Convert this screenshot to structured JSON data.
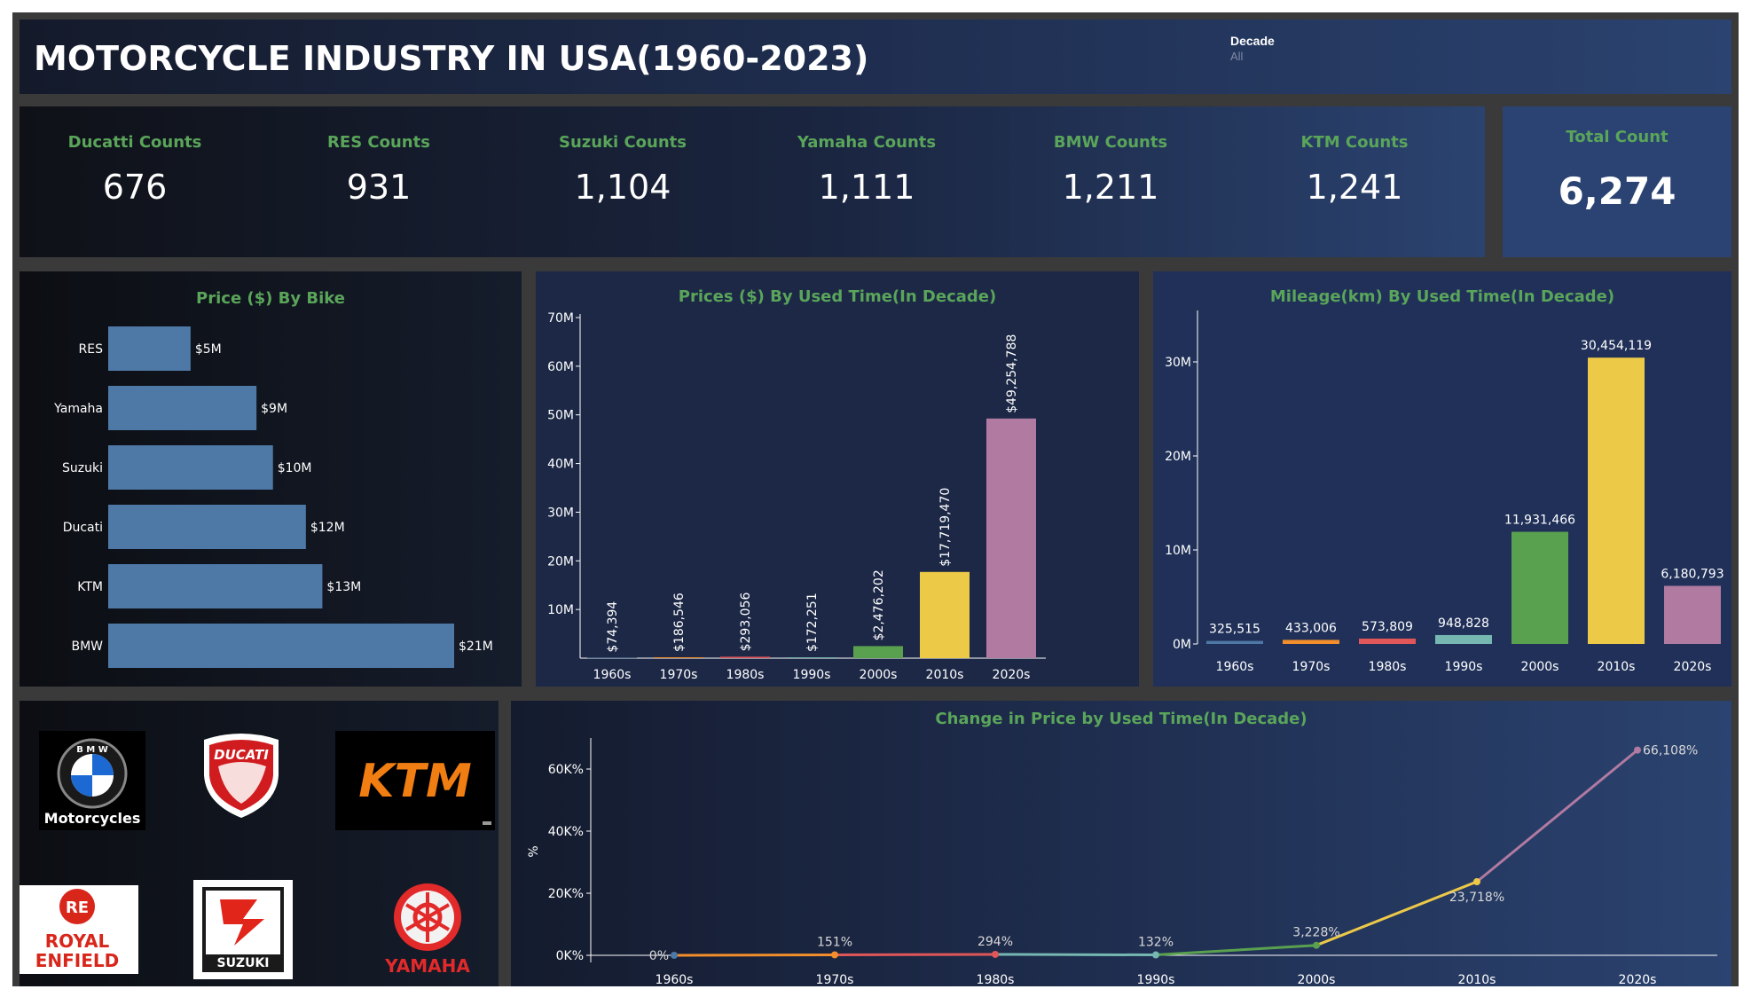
{
  "header": {
    "title": "MOTORCYCLE INDUSTRY IN USA(1960-2023)",
    "filter_label": "Decade",
    "filter_value": "All"
  },
  "kpis": [
    {
      "label": "Ducatti Counts",
      "value": "676"
    },
    {
      "label": "RES Counts",
      "value": "931"
    },
    {
      "label": "Suzuki Counts",
      "value": "1,104"
    },
    {
      "label": "Yamaha Counts",
      "value": "1,111"
    },
    {
      "label": "BMW Counts",
      "value": "1,211"
    },
    {
      "label": "KTM Counts",
      "value": "1,241"
    }
  ],
  "total": {
    "label": "Total Count",
    "value": "6,274"
  },
  "logos": {
    "bmw": {
      "text": "Motorcycles",
      "ring": "B M W"
    },
    "ducati": {
      "text": "DUCATI"
    },
    "ktm": {
      "text": "KTM"
    },
    "royal_enfield": {
      "line1": "ROYAL",
      "line2": "ENFIELD"
    },
    "suzuki": {
      "text": "SUZUKI"
    },
    "yamaha": {
      "text": "YAMAHA"
    }
  },
  "colors": {
    "bar_blue": "#4e79a7",
    "label_green": "#5aa55a",
    "decades": [
      "#4e79a7",
      "#f28e2b",
      "#e15759",
      "#76b7b2",
      "#59a14f",
      "#edc948",
      "#b07aa1"
    ]
  },
  "chart_data": [
    {
      "type": "bar",
      "orientation": "horizontal",
      "title": "Price ($) By Bike",
      "categories": [
        "RES",
        "Yamaha",
        "Suzuki",
        "Ducati",
        "KTM",
        "BMW"
      ],
      "values": [
        5,
        9,
        10,
        12,
        13,
        21
      ],
      "value_labels": [
        "$5M",
        "$9M",
        "$10M",
        "$12M",
        "$13M",
        "$21M"
      ],
      "unit": "M$"
    },
    {
      "type": "bar",
      "title": "Prices ($) By Used Time(In Decade)",
      "categories": [
        "1960s",
        "1970s",
        "1980s",
        "1990s",
        "2000s",
        "2010s",
        "2020s"
      ],
      "values": [
        74394,
        186546,
        293056,
        172251,
        2476202,
        17719470,
        49254788
      ],
      "value_labels": [
        "$74,394",
        "$186,546",
        "$293,056",
        "$172,251",
        "$2,476,202",
        "$17,719,470",
        "$49,254,788"
      ],
      "yticks": [
        "10M",
        "20M",
        "30M",
        "40M",
        "50M",
        "60M",
        "70M"
      ],
      "ylim": [
        0,
        70000000
      ]
    },
    {
      "type": "bar",
      "title": "Mileage(km) By Used Time(In Decade)",
      "categories": [
        "1960s",
        "1970s",
        "1980s",
        "1990s",
        "2000s",
        "2010s",
        "2020s"
      ],
      "values": [
        325515,
        433006,
        573809,
        948828,
        11931466,
        30454119,
        6180793
      ],
      "value_labels": [
        "325,515",
        "433,006",
        "573,809",
        "948,828",
        "11,931,466",
        "30,454,119",
        "6,180,793"
      ],
      "yticks": [
        "0M",
        "10M",
        "20M",
        "30M"
      ],
      "ylim": [
        0,
        30000000
      ]
    },
    {
      "type": "line",
      "title": "Change in Price by Used Time(In Decade)",
      "categories": [
        "1960s",
        "1970s",
        "1980s",
        "1990s",
        "2000s",
        "2010s",
        "2020s"
      ],
      "values": [
        0,
        151,
        294,
        132,
        3228,
        23718,
        66108
      ],
      "value_labels": [
        "0%",
        "151%",
        "294%",
        "132%",
        "3,228%",
        "23,718%",
        "66,108%"
      ],
      "yticks": [
        "0K%",
        "20K%",
        "40K%",
        "60K%"
      ],
      "ylabel": "%",
      "ylim": [
        0,
        60000
      ]
    }
  ]
}
